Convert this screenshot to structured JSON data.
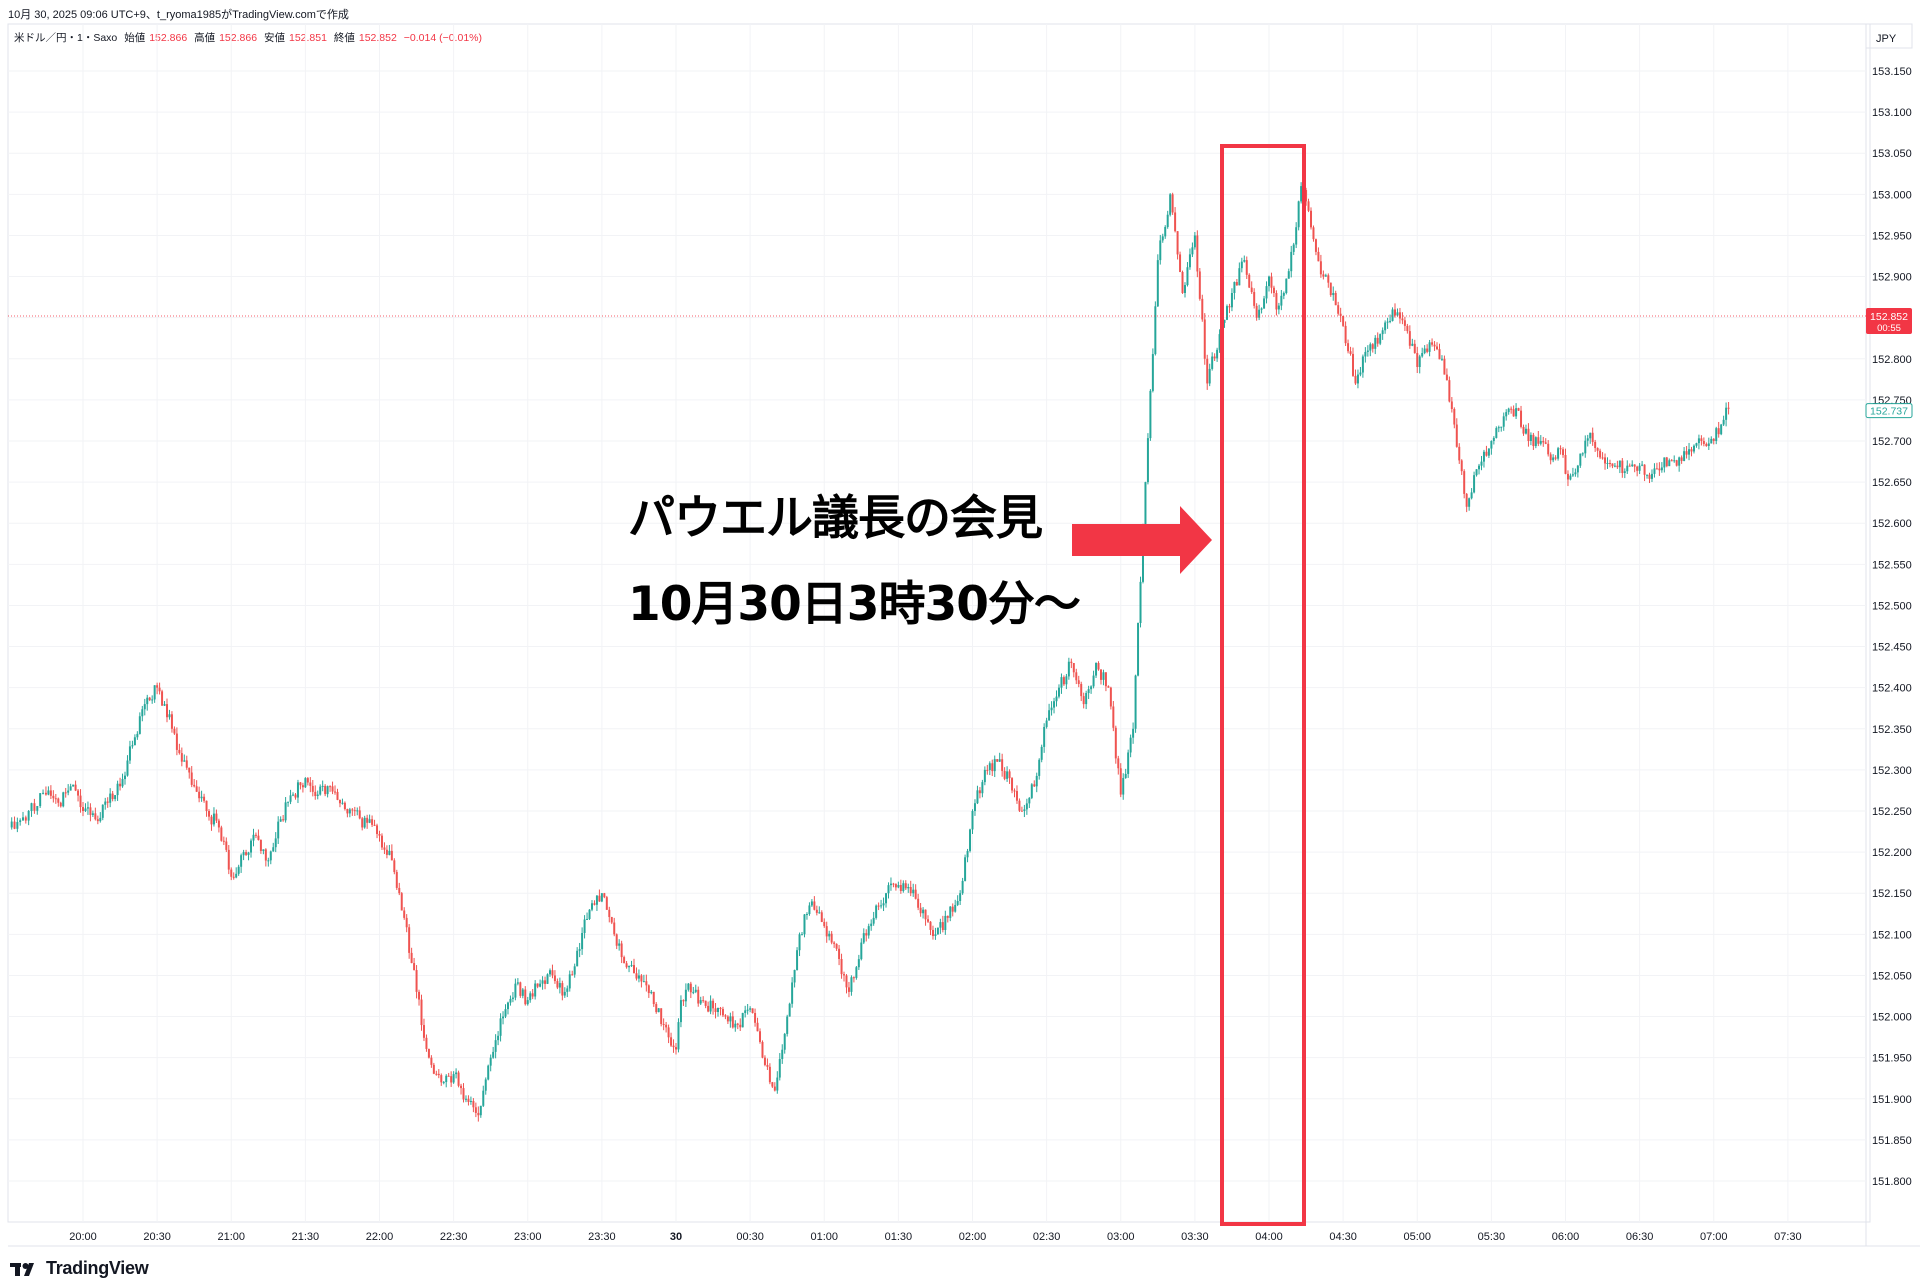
{
  "caption": "10月 30, 2025 09:06 UTC+9、t_ryoma1985がTradingView.comで作成",
  "legend": {
    "symbol": "米ドル／円・1・Saxo",
    "open_label": "始値",
    "open": "152.866",
    "high_label": "高値",
    "high": "152.866",
    "low_label": "安値",
    "low": "152.851",
    "close_label": "終値",
    "close": "152.852",
    "change": "−0.014 (−0.01%)"
  },
  "currency": "JPY",
  "annotation": {
    "line1": "パウエル議長の会見",
    "line2": "10月30日3時30分〜"
  },
  "brand": "TradingView",
  "colors": {
    "up": "#26a69a",
    "down": "#ef5350",
    "highlight": "#f23645",
    "arrow": "#f23645",
    "price_tag": "#f23645",
    "bid_tag": "#26a69a"
  },
  "chart_data": {
    "type": "line",
    "title": "",
    "xlabel": "",
    "ylabel": "",
    "ylim": [
      151.77,
      153.2
    ],
    "x_ticks": [
      "20:00",
      "20:30",
      "21:00",
      "21:30",
      "22:00",
      "22:30",
      "23:00",
      "23:30",
      "30",
      "00:30",
      "01:00",
      "01:30",
      "02:00",
      "02:30",
      "03:00",
      "03:30",
      "04:00",
      "04:30",
      "05:00",
      "05:30",
      "06:00",
      "06:30",
      "07:00",
      "07:30"
    ],
    "y_ticks": [
      "153.150",
      "153.100",
      "153.050",
      "153.000",
      "152.950",
      "152.900",
      "152.850",
      "152.800",
      "152.750",
      "152.700",
      "152.650",
      "152.600",
      "152.550",
      "152.500",
      "152.450",
      "152.400",
      "152.350",
      "152.300",
      "152.250",
      "152.200",
      "152.150",
      "152.100",
      "152.050",
      "152.000",
      "151.950",
      "151.900",
      "151.850",
      "151.800"
    ],
    "x_minutes_from_20_00": [
      -30,
      -22,
      -15,
      -10,
      -5,
      0,
      5,
      10,
      15,
      20,
      25,
      30,
      33,
      36,
      40,
      45,
      50,
      55,
      60,
      65,
      70,
      75,
      80,
      85,
      90,
      95,
      100,
      105,
      110,
      113,
      116,
      120,
      125,
      130,
      135,
      140,
      145,
      150,
      155,
      160,
      165,
      170,
      175,
      180,
      185,
      190,
      195,
      200,
      205,
      210,
      215,
      220,
      225,
      230,
      235,
      240,
      242,
      245,
      247,
      250,
      255,
      260,
      265,
      270,
      275,
      280,
      285,
      290,
      295,
      300,
      303,
      306,
      308,
      310,
      313,
      315,
      318,
      320,
      325,
      330,
      335,
      340,
      345,
      350,
      355,
      360,
      365,
      370,
      375,
      380,
      385,
      390,
      395,
      400,
      405,
      410,
      415,
      420,
      425,
      430,
      435,
      440,
      445,
      450,
      455,
      460,
      465,
      470,
      475,
      480,
      483,
      486,
      489,
      491,
      493,
      496,
      499,
      502,
      506,
      510,
      515,
      520,
      525,
      530,
      535,
      540,
      545,
      550,
      555,
      560,
      565,
      570,
      575,
      580,
      585,
      590,
      595,
      598,
      600,
      605,
      610,
      615,
      620,
      625,
      630,
      635,
      640,
      645,
      650,
      655,
      660,
      663,
      666
    ],
    "series": [
      {
        "values": [
          152.23,
          152.25,
          152.27,
          152.26,
          152.28,
          152.25,
          152.24,
          152.26,
          152.28,
          152.33,
          152.38,
          152.4,
          152.38,
          152.35,
          152.31,
          152.28,
          152.25,
          152.23,
          152.17,
          152.2,
          152.22,
          152.19,
          152.24,
          152.27,
          152.29,
          152.27,
          152.28,
          152.26,
          152.25,
          152.23,
          152.24,
          152.22,
          152.19,
          152.12,
          152.03,
          151.95,
          151.92,
          151.93,
          151.9,
          151.88,
          151.95,
          152.0,
          152.04,
          152.02,
          152.04,
          152.05,
          152.03,
          152.08,
          152.13,
          152.15,
          152.1,
          152.06,
          152.05,
          152.03,
          151.99,
          151.96,
          152.02,
          152.04,
          152.03,
          152.02,
          152.01,
          152.0,
          151.99,
          152.01,
          151.95,
          151.91,
          152.0,
          152.1,
          152.14,
          152.11,
          152.09,
          152.07,
          152.05,
          152.03,
          152.06,
          152.09,
          152.11,
          152.12,
          152.15,
          152.16,
          152.15,
          152.13,
          152.1,
          152.12,
          152.15,
          152.25,
          152.3,
          152.31,
          152.29,
          152.25,
          152.28,
          152.36,
          152.4,
          152.43,
          152.38,
          152.43,
          152.4,
          152.27,
          152.35,
          152.65,
          152.92,
          153.0,
          152.88,
          152.95,
          152.77,
          152.83,
          152.88,
          152.92,
          152.85,
          152.9,
          152.86,
          152.88,
          152.93,
          152.96,
          153.01,
          152.98,
          152.93,
          152.9,
          152.88,
          152.84,
          152.77,
          152.81,
          152.83,
          152.86,
          152.84,
          152.79,
          152.82,
          152.8,
          152.72,
          152.62,
          152.67,
          152.7,
          152.73,
          152.74,
          152.7,
          152.7,
          152.68,
          152.69,
          152.66,
          152.67,
          152.71,
          152.68,
          152.67,
          152.67,
          152.67,
          152.66,
          152.68,
          152.67,
          152.69,
          152.7,
          152.7,
          152.72,
          152.74
        ]
      }
    ],
    "annotation_box_minutes": [
      450,
      465
    ]
  }
}
